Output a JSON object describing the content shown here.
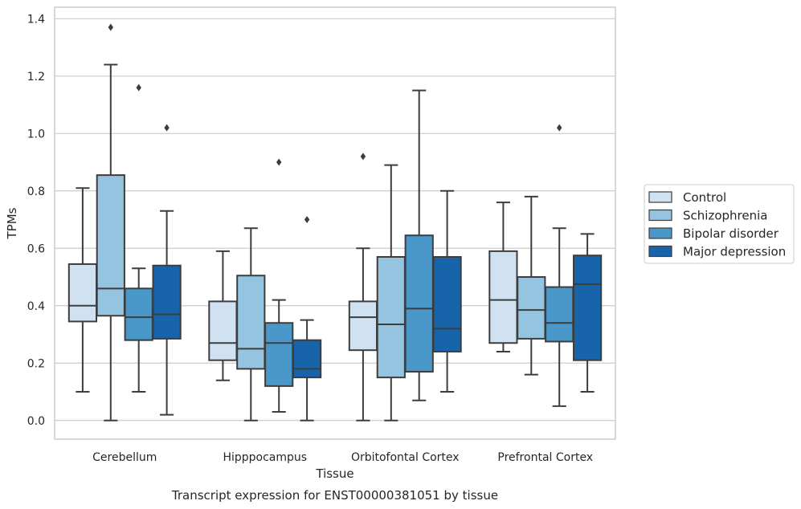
{
  "chart_data": {
    "type": "box",
    "title": "",
    "caption": "Transcript expression for ENST00000381051 by tissue",
    "xlabel": "Tissue",
    "ylabel": "TPMs",
    "ylim": [
      -0.065,
      1.44
    ],
    "yticks": [
      "0.0",
      "0.2",
      "0.4",
      "0.6",
      "0.8",
      "1.0",
      "1.2",
      "1.4"
    ],
    "ytick_values": [
      0,
      0.2,
      0.4,
      0.6,
      0.8,
      1.0,
      1.2,
      1.4
    ],
    "grid": true,
    "legend_position": "right-center",
    "categories": [
      "Cerebellum",
      "Hipppocampus",
      "Orbitofontal Cortex",
      "Prefrontal Cortex"
    ],
    "series": [
      {
        "name": "Control",
        "color": "#d0e1f2",
        "boxes": [
          {
            "whislo": 0.1,
            "q1": 0.345,
            "med": 0.4,
            "q3": 0.545,
            "whishi": 0.81,
            "fliers": []
          },
          {
            "whislo": 0.14,
            "q1": 0.21,
            "med": 0.27,
            "q3": 0.415,
            "whishi": 0.59,
            "fliers": []
          },
          {
            "whislo": 0.0,
            "q1": 0.245,
            "med": 0.36,
            "q3": 0.415,
            "whishi": 0.6,
            "fliers": [
              0.92
            ]
          },
          {
            "whislo": 0.24,
            "q1": 0.27,
            "med": 0.42,
            "q3": 0.59,
            "whishi": 0.76,
            "fliers": []
          }
        ]
      },
      {
        "name": "Schizophrenia",
        "color": "#94c4df",
        "boxes": [
          {
            "whislo": 0.0,
            "q1": 0.365,
            "med": 0.46,
            "q3": 0.855,
            "whishi": 1.24,
            "fliers": [
              1.37
            ]
          },
          {
            "whislo": 0.0,
            "q1": 0.18,
            "med": 0.25,
            "q3": 0.505,
            "whishi": 0.67,
            "fliers": []
          },
          {
            "whislo": 0.0,
            "q1": 0.15,
            "med": 0.335,
            "q3": 0.57,
            "whishi": 0.89,
            "fliers": []
          },
          {
            "whislo": 0.16,
            "q1": 0.285,
            "med": 0.385,
            "q3": 0.5,
            "whishi": 0.78,
            "fliers": []
          }
        ]
      },
      {
        "name": "Bipolar disorder",
        "color": "#4a98c9",
        "boxes": [
          {
            "whislo": 0.1,
            "q1": 0.28,
            "med": 0.36,
            "q3": 0.46,
            "whishi": 0.53,
            "fliers": [
              1.16
            ]
          },
          {
            "whislo": 0.03,
            "q1": 0.12,
            "med": 0.27,
            "q3": 0.34,
            "whishi": 0.42,
            "fliers": [
              0.9
            ]
          },
          {
            "whislo": 0.07,
            "q1": 0.17,
            "med": 0.39,
            "q3": 0.645,
            "whishi": 1.15,
            "fliers": []
          },
          {
            "whislo": 0.05,
            "q1": 0.275,
            "med": 0.34,
            "q3": 0.465,
            "whishi": 0.67,
            "fliers": [
              1.02
            ]
          }
        ]
      },
      {
        "name": "Major depression",
        "color": "#1764ab",
        "boxes": [
          {
            "whislo": 0.02,
            "q1": 0.285,
            "med": 0.37,
            "q3": 0.54,
            "whishi": 0.73,
            "fliers": [
              1.02
            ]
          },
          {
            "whislo": 0.0,
            "q1": 0.15,
            "med": 0.18,
            "q3": 0.28,
            "whishi": 0.35,
            "fliers": [
              0.7
            ]
          },
          {
            "whislo": 0.1,
            "q1": 0.24,
            "med": 0.32,
            "q3": 0.57,
            "whishi": 0.8,
            "fliers": []
          },
          {
            "whislo": 0.1,
            "q1": 0.21,
            "med": 0.475,
            "q3": 0.575,
            "whishi": 0.65,
            "fliers": []
          }
        ]
      }
    ]
  }
}
